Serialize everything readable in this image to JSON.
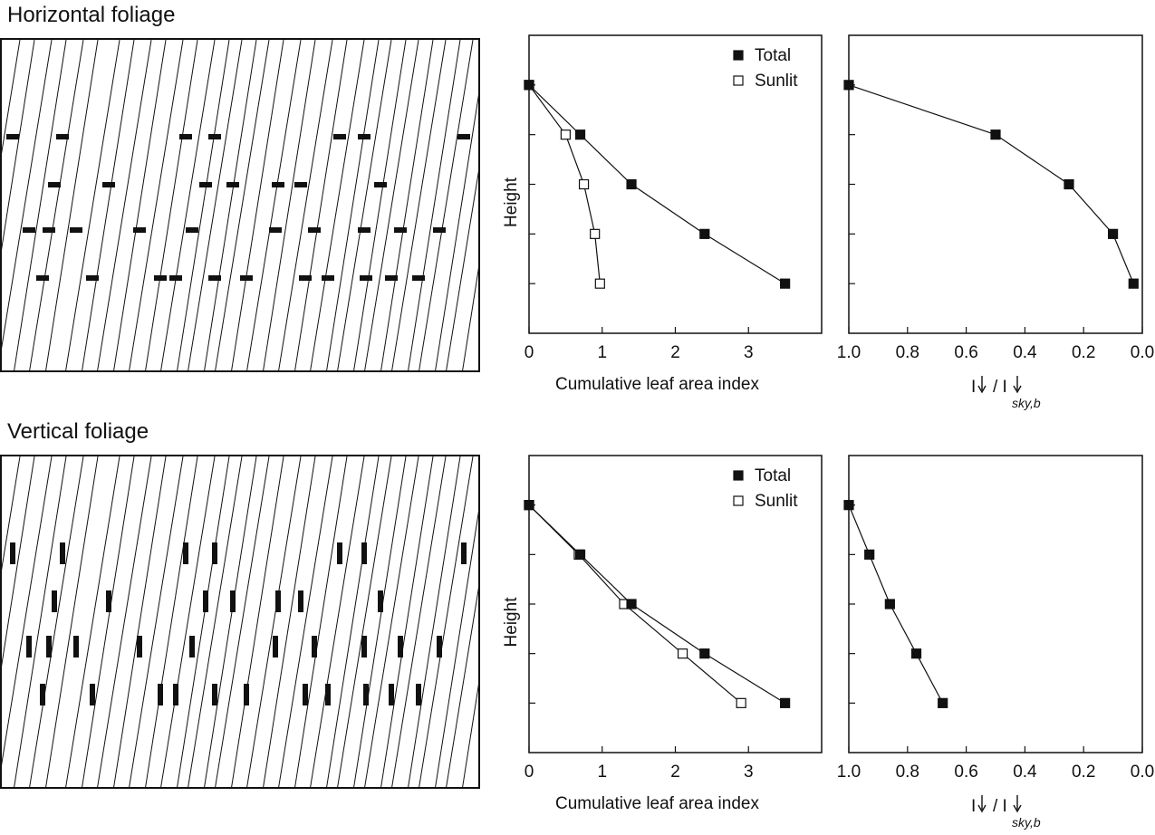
{
  "panels": {
    "horizontal": {
      "title": "Horizontal foliage",
      "leaf_orientation": "horizontal"
    },
    "vertical": {
      "title": "Vertical foliage",
      "leaf_orientation": "vertical"
    }
  },
  "chart_data": [
    {
      "type": "line",
      "panel": "horizontal",
      "xlabel": "Cumulative leaf area index",
      "ylabel": "Height",
      "xlim": [
        0,
        4
      ],
      "ylim": [
        0,
        6
      ],
      "x_ticks": [
        0,
        1,
        2,
        3
      ],
      "y_ticks": [
        1,
        2,
        3,
        4,
        5
      ],
      "legend": "top-right",
      "series": [
        {
          "name": "Total",
          "marker": "filled-square",
          "x": [
            0,
            0.7,
            1.4,
            2.4,
            3.5
          ],
          "y": [
            5,
            4,
            3,
            2,
            1
          ]
        },
        {
          "name": "Sunlit",
          "marker": "open-square",
          "x": [
            0,
            0.5,
            0.75,
            0.9,
            0.97
          ],
          "y": [
            5,
            4,
            3,
            2,
            1
          ]
        }
      ]
    },
    {
      "type": "line",
      "panel": "horizontal",
      "xlabel_parts": {
        "a": "I",
        "b": "/ I",
        "sub": "sky,b"
      },
      "xlim": [
        1.0,
        0.0
      ],
      "ylim": [
        0,
        6
      ],
      "x_ticks": [
        1.0,
        0.8,
        0.6,
        0.4,
        0.2,
        0.0
      ],
      "x_tick_labels": [
        "1.0",
        "0.8",
        "0.6",
        "0.4",
        "0.2",
        "0.0"
      ],
      "y_ticks": [
        1,
        2,
        3,
        4,
        5
      ],
      "series": [
        {
          "marker": "filled-square",
          "x": [
            1.0,
            0.5,
            0.25,
            0.1,
            0.03
          ],
          "y": [
            5,
            4,
            3,
            2,
            1
          ]
        }
      ]
    },
    {
      "type": "line",
      "panel": "vertical",
      "xlabel": "Cumulative leaf area index",
      "ylabel": "Height",
      "xlim": [
        0,
        4
      ],
      "ylim": [
        0,
        6
      ],
      "x_ticks": [
        0,
        1,
        2,
        3
      ],
      "y_ticks": [
        1,
        2,
        3,
        4,
        5
      ],
      "legend": "top-right",
      "series": [
        {
          "name": "Total",
          "marker": "filled-square",
          "x": [
            0,
            0.7,
            1.4,
            2.4,
            3.5
          ],
          "y": [
            5,
            4,
            3,
            2,
            1
          ]
        },
        {
          "name": "Sunlit",
          "marker": "open-square",
          "x": [
            0,
            0.68,
            1.3,
            2.1,
            2.9
          ],
          "y": [
            5,
            4,
            3,
            2,
            1
          ]
        }
      ]
    },
    {
      "type": "line",
      "panel": "vertical",
      "xlabel_parts": {
        "a": "I",
        "b": "/ I",
        "sub": "sky,b"
      },
      "xlim": [
        1.0,
        0.0
      ],
      "ylim": [
        0,
        6
      ],
      "x_ticks": [
        1.0,
        0.8,
        0.6,
        0.4,
        0.2,
        0.0
      ],
      "x_tick_labels": [
        "1.0",
        "0.8",
        "0.6",
        "0.4",
        "0.2",
        "0.0"
      ],
      "y_ticks": [
        1,
        2,
        3,
        4,
        5
      ],
      "series": [
        {
          "marker": "filled-square",
          "x": [
            1.0,
            0.93,
            0.86,
            0.77,
            0.68
          ],
          "y": [
            5,
            4,
            3,
            2,
            1
          ]
        }
      ]
    }
  ]
}
